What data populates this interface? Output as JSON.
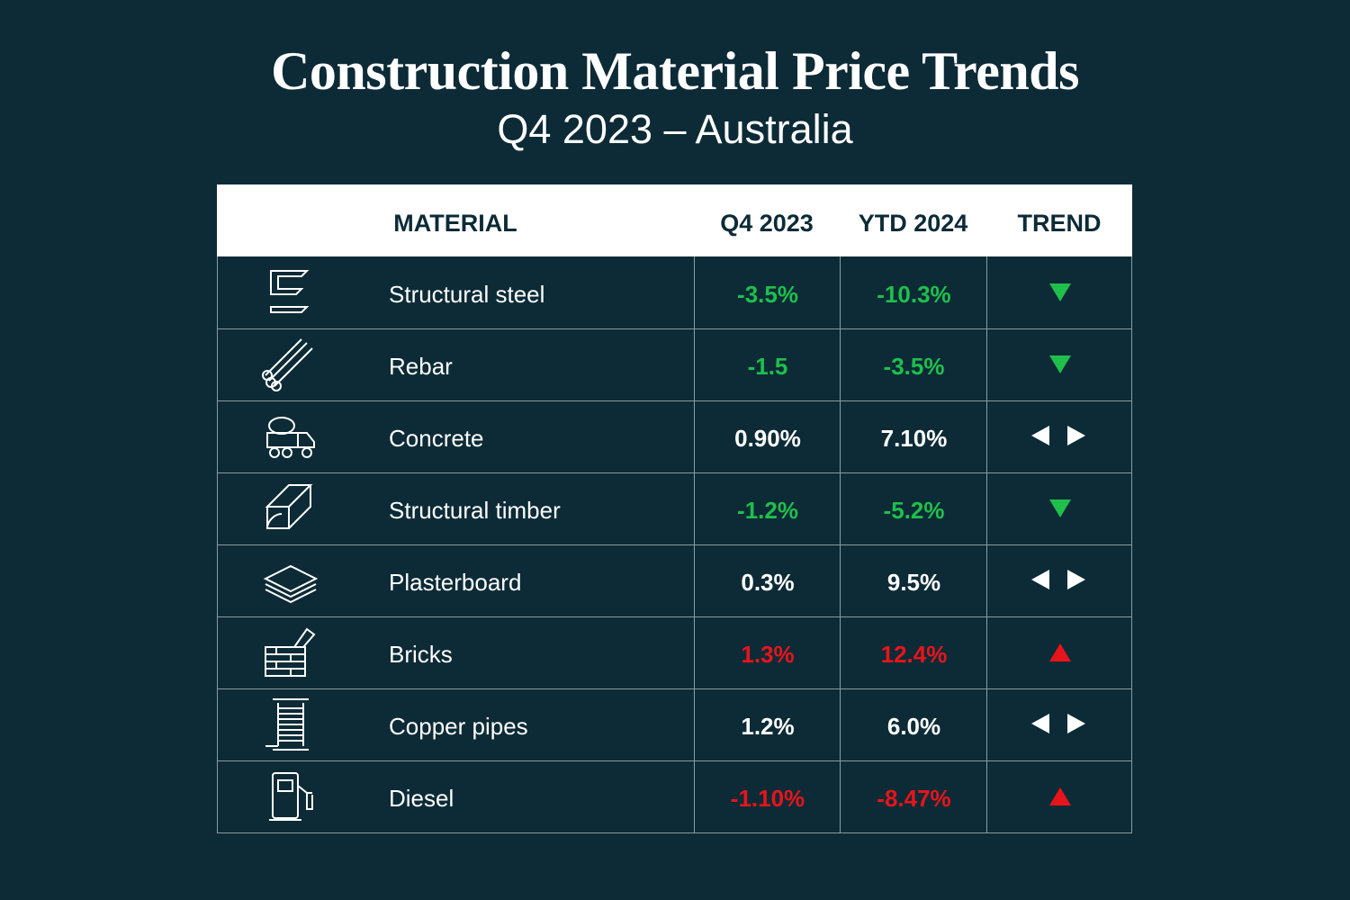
{
  "header": {
    "title": "Construction Material Price Trends",
    "subtitle": "Q4 2023 – Australia"
  },
  "table": {
    "columns": [
      "MATERIAL",
      "Q4 2023",
      "YTD 2024",
      "TREND"
    ],
    "rows": [
      {
        "material": "Structural steel",
        "q4": "-3.5%",
        "ytd": "-10.3%",
        "trend": "down"
      },
      {
        "material": "Rebar",
        "q4": "-1.5",
        "ytd": "-3.5%",
        "trend": "down"
      },
      {
        "material": "Concrete",
        "q4": "0.90%",
        "ytd": "7.10%",
        "trend": "flat"
      },
      {
        "material": "Structural timber",
        "q4": "-1.2%",
        "ytd": "-5.2%",
        "trend": "down"
      },
      {
        "material": "Plasterboard",
        "q4": "0.3%",
        "ytd": "9.5%",
        "trend": "flat"
      },
      {
        "material": "Bricks",
        "q4": "1.3%",
        "ytd": "12.4%",
        "trend": "up"
      },
      {
        "material": "Copper pipes",
        "q4": "1.2%",
        "ytd": "6.0%",
        "trend": "flat"
      },
      {
        "material": "Diesel",
        "q4": "-1.10%",
        "ytd": "-8.47%",
        "trend": "up"
      }
    ],
    "trend_colors": {
      "down": "#1fbf4c",
      "flat": "#ffffff",
      "up": "#e8141b"
    }
  }
}
